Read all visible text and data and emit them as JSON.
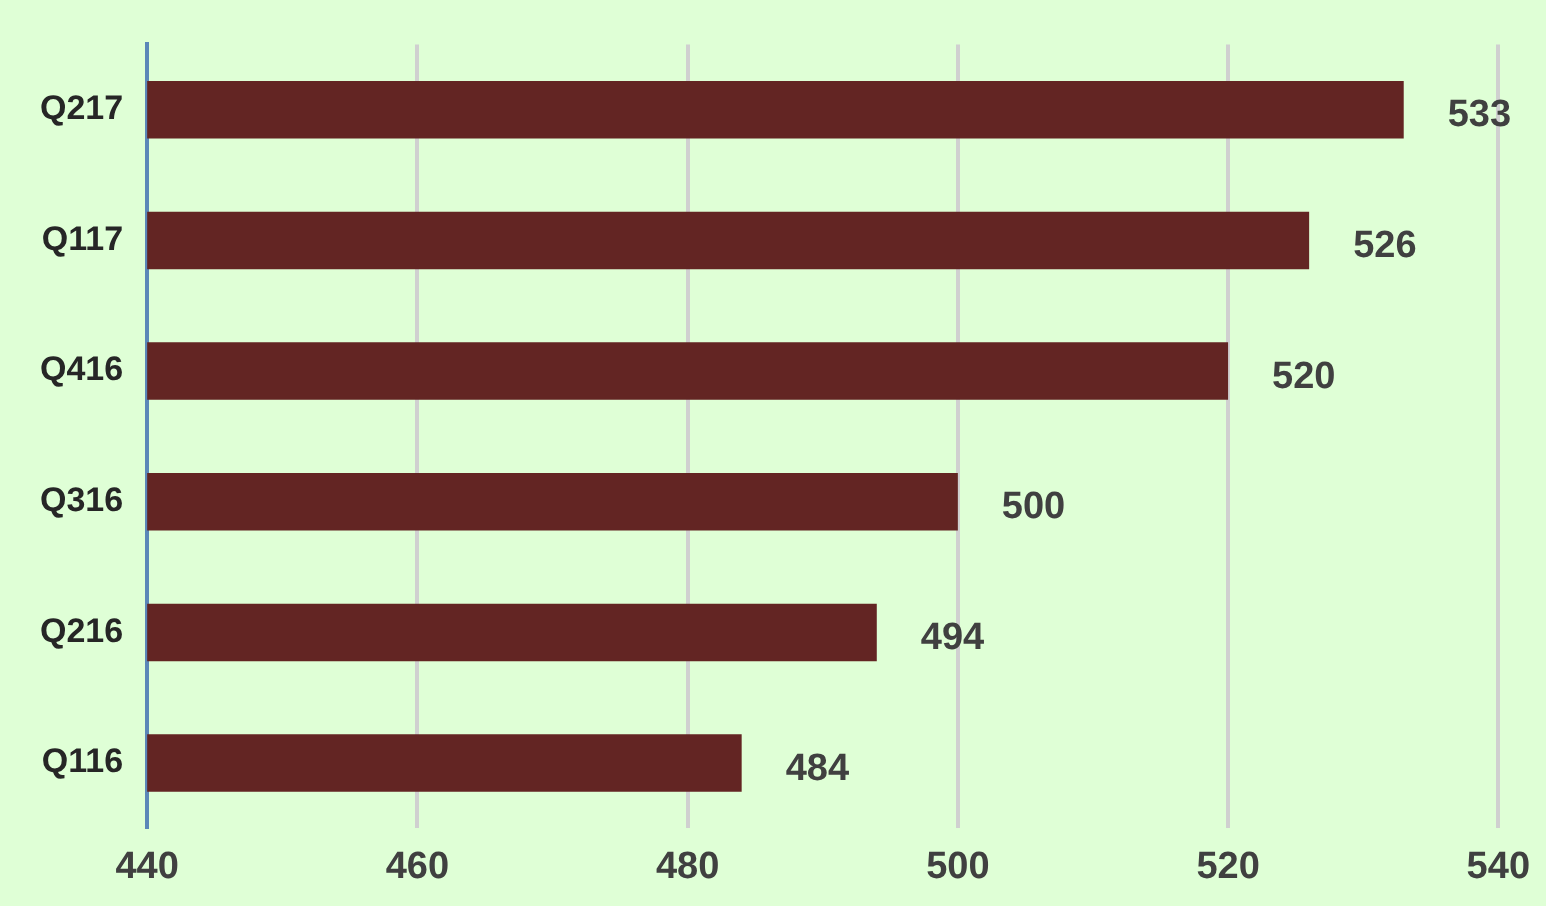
{
  "chart_data": {
    "type": "bar",
    "orientation": "horizontal",
    "categories": [
      "Q217",
      "Q117",
      "Q416",
      "Q316",
      "Q216",
      "Q116"
    ],
    "values": [
      533,
      526,
      520,
      500,
      494,
      484
    ],
    "color": "#632523",
    "xlim": [
      440,
      540
    ],
    "xticks": [
      440,
      460,
      480,
      500,
      520,
      540
    ],
    "grid": "x",
    "data_labels": true,
    "legend": false
  }
}
